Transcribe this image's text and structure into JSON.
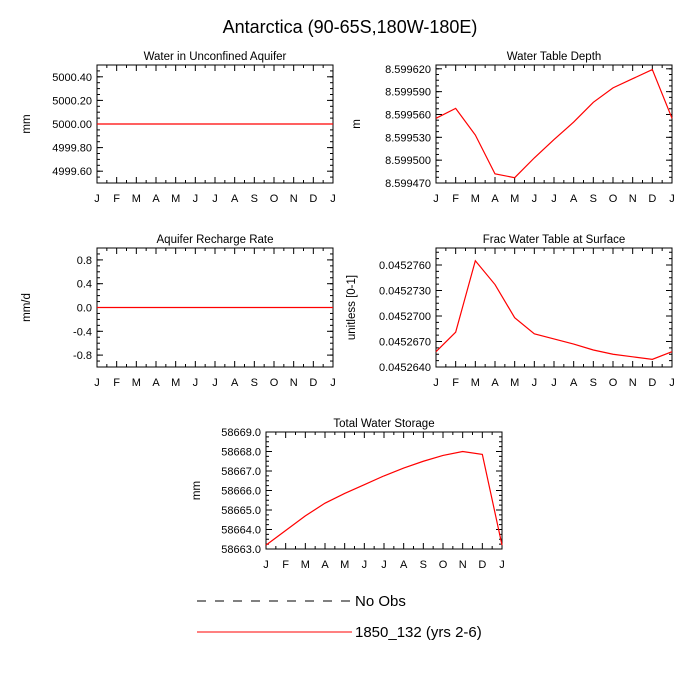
{
  "figure": {
    "title": "Antarctica (90-65S,180W-180E)",
    "legend": [
      {
        "label": "No Obs",
        "color": "#000000",
        "style": "dashed"
      },
      {
        "label": "1850_132 (yrs 2-6)",
        "color": "#ff0000",
        "style": "solid"
      }
    ]
  },
  "chart_data": [
    {
      "type": "line",
      "title": "Water in Unconfined Aquifer",
      "ylabel": "mm",
      "x": [
        "J",
        "F",
        "M",
        "A",
        "M",
        "J",
        "J",
        "A",
        "S",
        "O",
        "N",
        "D",
        "J"
      ],
      "ylim": [
        4999.5,
        5000.5
      ],
      "yticks": [
        "5000.40",
        "5000.20",
        "5000.00",
        "4999.80",
        "4999.60"
      ],
      "series": [
        {
          "color": "#ff0000",
          "values": [
            5000,
            5000,
            5000,
            5000,
            5000,
            5000,
            5000,
            5000,
            5000,
            5000,
            5000,
            5000,
            5000
          ]
        }
      ]
    },
    {
      "type": "line",
      "title": "Water Table Depth",
      "ylabel": "m",
      "x": [
        "J",
        "F",
        "M",
        "A",
        "M",
        "J",
        "J",
        "A",
        "S",
        "O",
        "N",
        "D",
        "J"
      ],
      "ylim": [
        8.59947,
        8.599625
      ],
      "yticks": [
        "8.599620",
        "8.599590",
        "8.599560",
        "8.599530",
        "8.599500",
        "8.599470"
      ],
      "series": [
        {
          "color": "#ff0000",
          "values": [
            8.599555,
            8.599568,
            8.599533,
            8.599482,
            8.599477,
            8.599503,
            8.599527,
            8.59955,
            8.599576,
            8.599595,
            8.599607,
            8.599619,
            8.599555
          ]
        }
      ]
    },
    {
      "type": "line",
      "title": "Aquifer Recharge Rate",
      "ylabel": "mm/d",
      "x": [
        "J",
        "F",
        "M",
        "A",
        "M",
        "J",
        "J",
        "A",
        "S",
        "O",
        "N",
        "D",
        "J"
      ],
      "ylim": [
        -1.0,
        1.0
      ],
      "yticks": [
        "0.8",
        "0.4",
        "0.0",
        "-0.4",
        "-0.8"
      ],
      "series": [
        {
          "color": "#ff0000",
          "values": [
            0,
            0,
            0,
            0,
            0,
            0,
            0,
            0,
            0,
            0,
            0,
            0,
            0
          ]
        }
      ]
    },
    {
      "type": "line",
      "title": "Frac Water Table at Surface",
      "ylabel": "unitless [0-1]",
      "x": [
        "J",
        "F",
        "M",
        "A",
        "M",
        "J",
        "J",
        "A",
        "S",
        "O",
        "N",
        "D",
        "J"
      ],
      "ylim": [
        0.045264,
        0.045278
      ],
      "yticks": [
        "0.0452760",
        "0.0452730",
        "0.0452700",
        "0.0452670",
        "0.0452640"
      ],
      "series": [
        {
          "color": "#ff0000",
          "values": [
            0.0452658,
            0.0452681,
            0.0452765,
            0.0452737,
            0.0452698,
            0.0452679,
            0.0452673,
            0.0452667,
            0.045266,
            0.0452655,
            0.0452652,
            0.0452649,
            0.0452658
          ]
        }
      ]
    },
    {
      "type": "line",
      "title": "Total Water Storage",
      "ylabel": "mm",
      "x": [
        "J",
        "F",
        "M",
        "A",
        "M",
        "J",
        "J",
        "A",
        "S",
        "O",
        "N",
        "D",
        "J"
      ],
      "ylim": [
        58663.0,
        58669.0
      ],
      "yticks": [
        "58669.0",
        "58668.0",
        "58667.0",
        "58666.0",
        "58665.0",
        "58664.0",
        "58663.0"
      ],
      "series": [
        {
          "color": "#ff0000",
          "values": [
            58663.2,
            58663.95,
            58664.7,
            58665.35,
            58665.85,
            58666.3,
            58666.75,
            58667.15,
            58667.5,
            58667.8,
            58668.0,
            58667.85,
            58663.2
          ]
        }
      ]
    }
  ]
}
